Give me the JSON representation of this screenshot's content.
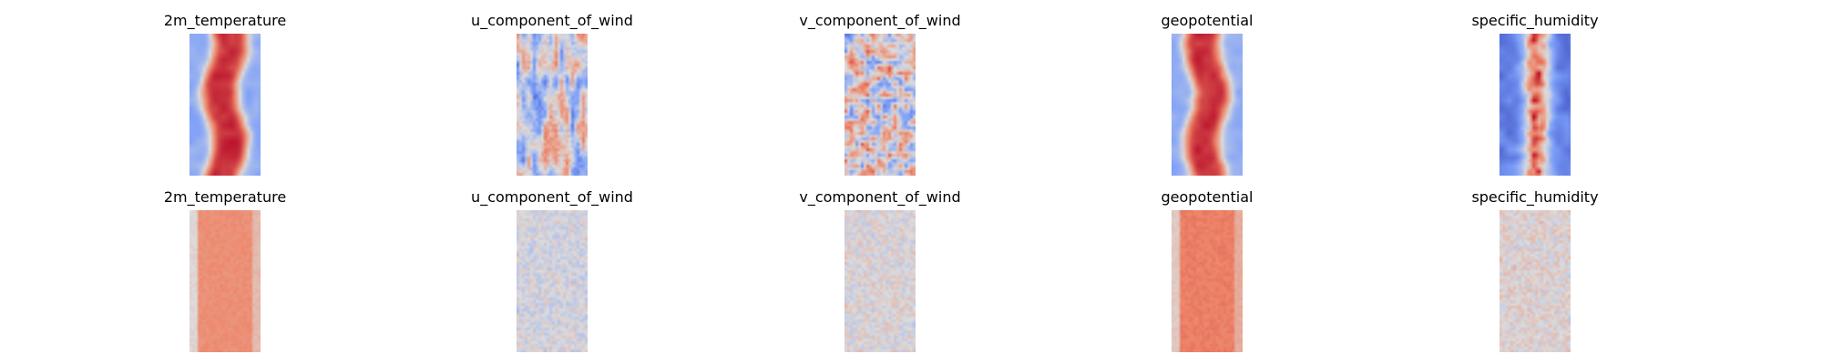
{
  "chart_data": [
    {
      "type": "heatmap",
      "title": "2m_temperature",
      "row": 0,
      "colormap": "coolwarm",
      "pattern": "warm_band",
      "mean": 0.72
    },
    {
      "type": "heatmap",
      "title": "u_component_of_wind",
      "row": 0,
      "colormap": "coolwarm",
      "pattern": "streaky",
      "mean": 0.42
    },
    {
      "type": "heatmap",
      "title": "v_component_of_wind",
      "row": 0,
      "colormap": "coolwarm",
      "pattern": "noisy",
      "mean": 0.5
    },
    {
      "type": "heatmap",
      "title": "geopotential",
      "row": 0,
      "colormap": "coolwarm",
      "pattern": "warm_band",
      "mean": 0.75
    },
    {
      "type": "heatmap",
      "title": "specific_humidity",
      "row": 0,
      "colormap": "coolwarm",
      "pattern": "cool_edges_warm_core",
      "mean": 0.35
    },
    {
      "type": "heatmap",
      "title": "2m_temperature",
      "row": 1,
      "colormap": "coolwarm",
      "pattern": "flat_warm",
      "mean": 0.72
    },
    {
      "type": "heatmap",
      "title": "u_component_of_wind",
      "row": 1,
      "colormap": "coolwarm",
      "pattern": "faint_noise",
      "mean": 0.48
    },
    {
      "type": "heatmap",
      "title": "v_component_of_wind",
      "row": 1,
      "colormap": "coolwarm",
      "pattern": "faint_noise",
      "mean": 0.5
    },
    {
      "type": "heatmap",
      "title": "geopotential",
      "row": 1,
      "colormap": "coolwarm",
      "pattern": "flat_warm",
      "mean": 0.76
    },
    {
      "type": "heatmap",
      "title": "specific_humidity",
      "row": 1,
      "colormap": "coolwarm",
      "pattern": "faint_noise",
      "mean": 0.52
    }
  ]
}
